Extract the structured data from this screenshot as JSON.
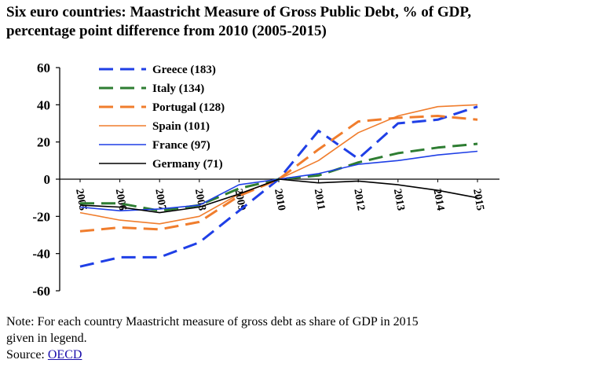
{
  "title_line1": "Six euro countries: Maastricht Measure of Gross Public Debt, % of GDP,",
  "title_line2": "percentage point difference from 2010 (2005-2015)",
  "note_line1": "Note: For each country Maastricht measure of gross debt as share of GDP in 2015",
  "note_line2": "given in legend.",
  "source_label": "Source:",
  "source_link": "OECD",
  "chart_data": {
    "type": "line",
    "x": [
      "2005",
      "2006",
      "2007",
      "2008",
      "2009",
      "2010",
      "2011",
      "2012",
      "2013",
      "2014",
      "2015"
    ],
    "ylim": [
      -60,
      60
    ],
    "yticks": [
      "60",
      "40",
      "20",
      "0",
      "-20",
      "-40",
      "-60"
    ],
    "grid": false,
    "legend_position": "top-left",
    "series": [
      {
        "name": "Greece (183)",
        "color": "#1f3fe6",
        "dash": true,
        "values": [
          -47,
          -42,
          -42,
          -34,
          -17,
          0,
          26,
          11,
          30,
          32,
          39
        ]
      },
      {
        "name": "Italy (134)",
        "color": "#2e7d32",
        "dash": true,
        "values": [
          -13,
          -13,
          -17,
          -14,
          -5,
          0,
          2,
          9,
          14,
          17,
          19
        ]
      },
      {
        "name": "Portugal (128)",
        "color": "#f07d2d",
        "dash": true,
        "values": [
          -28,
          -26,
          -27,
          -23,
          -9,
          0,
          16,
          31,
          33,
          34,
          32
        ]
      },
      {
        "name": "Spain (101)",
        "color": "#f07d2d",
        "dash": false,
        "values": [
          -18,
          -22,
          -24,
          -20,
          -8,
          0,
          10,
          25,
          34,
          39,
          40
        ]
      },
      {
        "name": "France (97)",
        "color": "#1f3fe6",
        "dash": false,
        "values": [
          -15,
          -17,
          -16,
          -14,
          -3,
          0,
          3,
          8,
          10,
          13,
          15
        ]
      },
      {
        "name": "Germany (71)",
        "color": "#000000",
        "dash": false,
        "values": [
          -14,
          -15,
          -18,
          -15,
          -8,
          0,
          -2,
          -1,
          -3,
          -6,
          -10
        ]
      }
    ]
  }
}
